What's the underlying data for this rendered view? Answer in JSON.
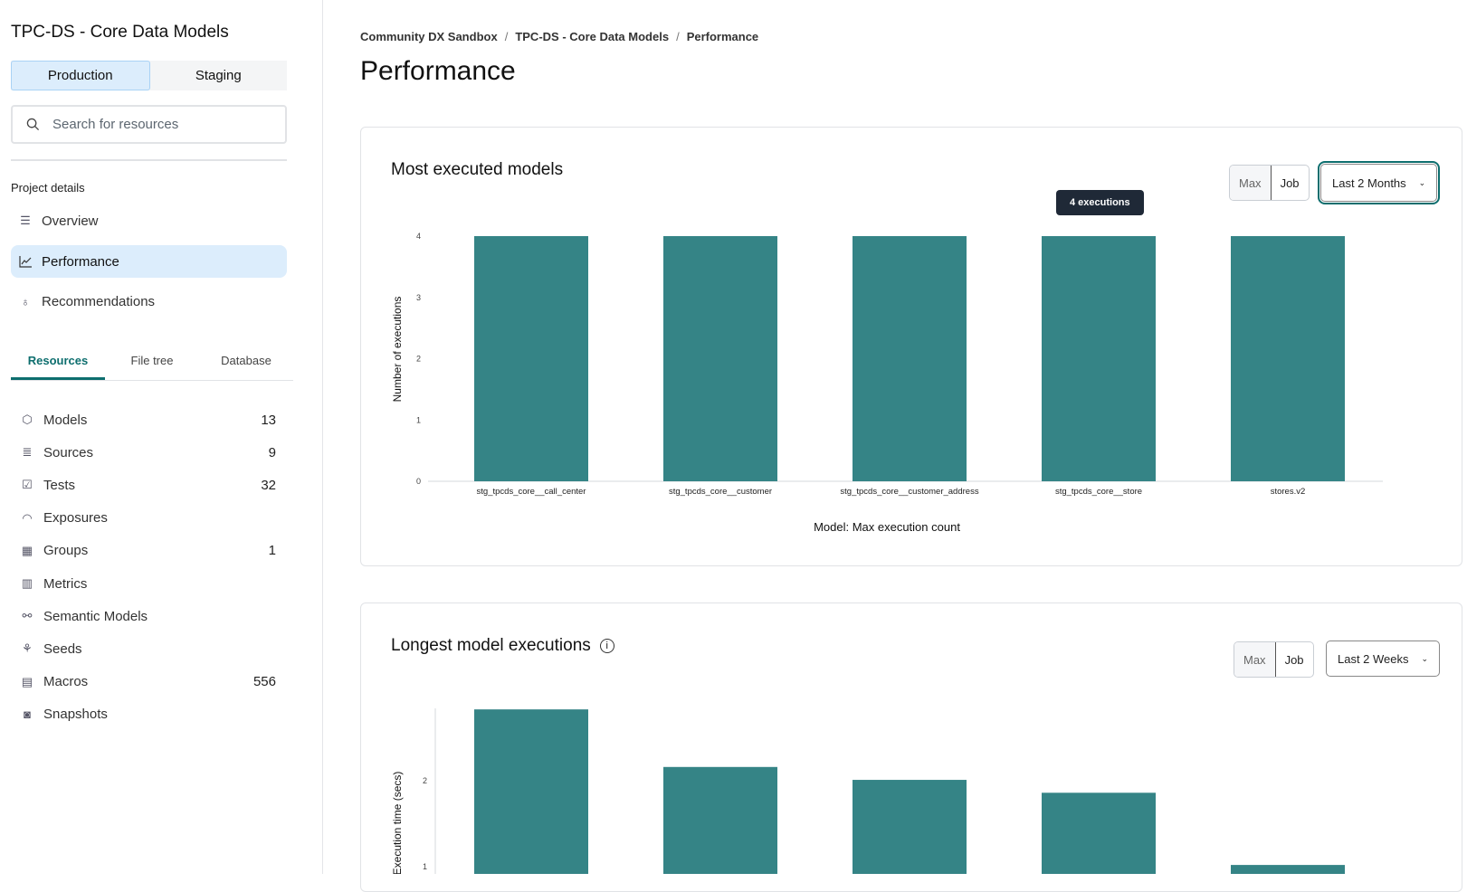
{
  "sidebar": {
    "project_title": "TPC-DS - Core Data Models",
    "env_tabs": [
      "Production",
      "Staging"
    ],
    "search_placeholder": "Search for resources",
    "section_label": "Project details",
    "nav": [
      {
        "label": "Overview",
        "icon": "list-icon"
      },
      {
        "label": "Performance",
        "icon": "chart-line-icon",
        "active": true
      },
      {
        "label": "Recommendations",
        "icon": "lightbulb-icon"
      }
    ],
    "tabs": [
      "Resources",
      "File tree",
      "Database"
    ],
    "resources": [
      {
        "label": "Models",
        "count": "13",
        "icon": "cube-icon"
      },
      {
        "label": "Sources",
        "count": "9",
        "icon": "database-icon"
      },
      {
        "label": "Tests",
        "count": "32",
        "icon": "clipboard-check-icon"
      },
      {
        "label": "Exposures",
        "count": "",
        "icon": "gauge-icon"
      },
      {
        "label": "Groups",
        "count": "1",
        "icon": "grid-icon"
      },
      {
        "label": "Metrics",
        "count": "",
        "icon": "bar-chart-icon"
      },
      {
        "label": "Semantic Models",
        "count": "",
        "icon": "nodes-icon"
      },
      {
        "label": "Seeds",
        "count": "",
        "icon": "sprout-icon"
      },
      {
        "label": "Macros",
        "count": "556",
        "icon": "document-icon"
      },
      {
        "label": "Snapshots",
        "count": "",
        "icon": "camera-icon"
      }
    ]
  },
  "breadcrumb": [
    "Community DX Sandbox",
    "TPC-DS - Core Data Models",
    "Performance"
  ],
  "page_title": "Performance",
  "card1": {
    "title": "Most executed models",
    "toggle": [
      "Max",
      "Job"
    ],
    "range": "Last 2 Months",
    "tooltip": "4 executions"
  },
  "card2": {
    "title": "Longest model executions",
    "toggle": [
      "Max",
      "Job"
    ],
    "range": "Last 2 Weeks"
  },
  "colors": {
    "bar": "#358486",
    "accent": "#0d6e6e",
    "active_bg": "#dcedfc"
  },
  "chart_data": [
    {
      "type": "bar",
      "categories": [
        "stg_tpcds_core__call_center",
        "stg_tpcds_core__customer",
        "stg_tpcds_core__customer_address",
        "stg_tpcds_core__store",
        "stores.v2"
      ],
      "values": [
        4,
        4,
        4,
        4,
        4
      ],
      "xlabel": "Model: Max execution count",
      "ylabel": "Number of executions",
      "ylim": [
        0,
        4
      ],
      "yticks": [
        "0",
        "1",
        "2",
        "3",
        "4"
      ],
      "grid": false
    },
    {
      "type": "bar",
      "values": [
        2.83,
        2.16,
        2.01,
        1.86,
        1.02
      ],
      "ylabel": "Execution time (secs)",
      "yticks": [
        "1",
        "2"
      ],
      "grid": false
    }
  ]
}
